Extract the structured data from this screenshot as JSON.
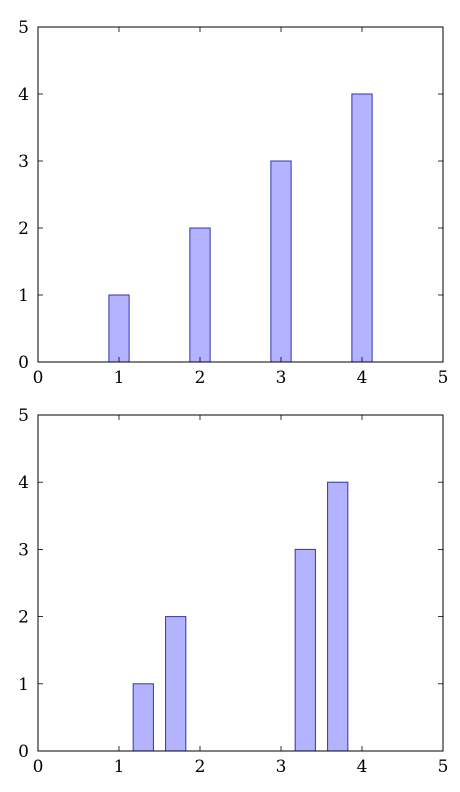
{
  "chart_data": [
    {
      "type": "bar",
      "title": "",
      "xlabel": "",
      "ylabel": "",
      "xlim": [
        0,
        5
      ],
      "ylim": [
        0,
        5
      ],
      "xticks": [
        0,
        1,
        2,
        3,
        4,
        5
      ],
      "yticks": [
        0,
        1,
        2,
        3,
        4,
        5
      ],
      "grid": false,
      "bar_fill": "#b3b3ff",
      "bar_stroke": "#3333b3",
      "series": [
        {
          "x": [
            1,
            2,
            3,
            4
          ],
          "values": [
            1,
            2,
            3,
            4
          ],
          "bar_width": 0.25
        }
      ]
    },
    {
      "type": "bar",
      "title": "",
      "xlabel": "",
      "ylabel": "",
      "xlim": [
        0,
        5
      ],
      "ylim": [
        0,
        5
      ],
      "xticks": [
        0,
        1,
        2,
        3,
        4,
        5
      ],
      "yticks": [
        0,
        1,
        2,
        3,
        4,
        5
      ],
      "grid": false,
      "bar_fill": "#b3b3ff",
      "bar_stroke": "#3333b3",
      "series": [
        {
          "x": [
            1.3,
            1.7,
            3.3,
            3.7
          ],
          "values": [
            1,
            2,
            3,
            4
          ],
          "bar_width": 0.25
        }
      ]
    }
  ]
}
